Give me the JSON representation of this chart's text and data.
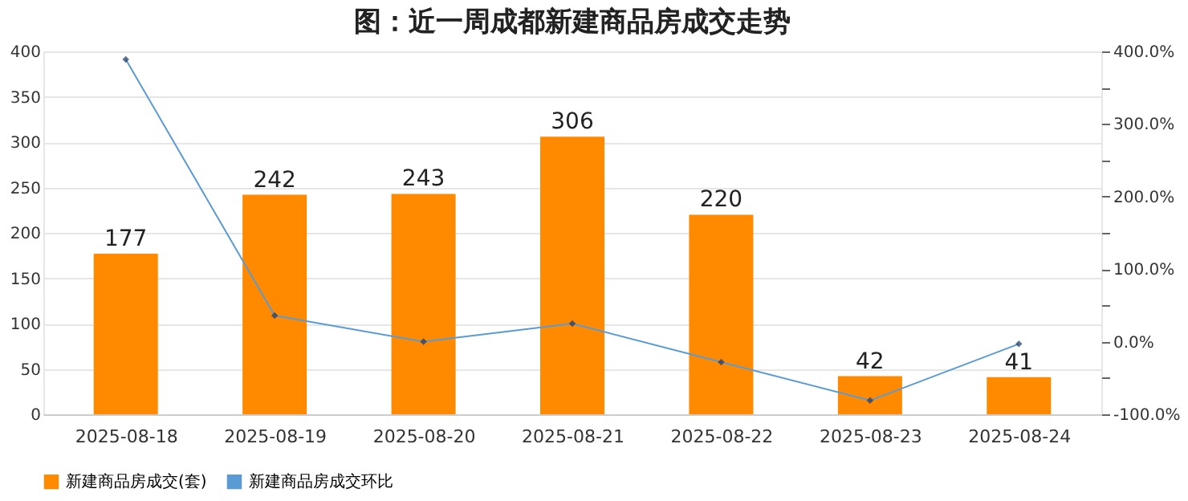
{
  "chart_data": {
    "type": "bar",
    "title": "图：近一周成都新建商品房成交走势",
    "categories": [
      "2025-08-18",
      "2025-08-19",
      "2025-08-20",
      "2025-08-21",
      "2025-08-22",
      "2025-08-23",
      "2025-08-24"
    ],
    "series": [
      {
        "name": "新建商品房成交(套)",
        "color": "#ff8a00",
        "values": [
          177,
          242,
          243,
          306,
          220,
          42,
          41
        ],
        "value_labels": [
          "177",
          "242",
          "243",
          "306",
          "220",
          "42",
          "41"
        ]
      },
      {
        "name": "新建商品房成交环比",
        "type": "line",
        "axis": "y2",
        "color": "#5b9bd5",
        "marker": "diamond",
        "values": [
          389,
          36,
          0,
          25,
          -28,
          -81,
          -3
        ]
      }
    ],
    "ylim": [
      0,
      400
    ],
    "yticks": [
      0,
      50,
      100,
      150,
      200,
      250,
      300,
      350,
      400
    ],
    "y2lim": [
      -100,
      400
    ],
    "y2ticks": [
      {
        "value": -100,
        "label": "-100.0%"
      },
      {
        "value": -50,
        "label": null
      },
      {
        "value": 0,
        "label": "0.0%"
      },
      {
        "value": 50,
        "label": null
      },
      {
        "value": 100,
        "label": "100.0%"
      },
      {
        "value": 150,
        "label": null
      },
      {
        "value": 200,
        "label": "200.0%"
      },
      {
        "value": 250,
        "label": null
      },
      {
        "value": 300,
        "label": "300.0%"
      },
      {
        "value": 350,
        "label": null
      },
      {
        "value": 400,
        "label": "400.0%"
      }
    ],
    "grid": "y",
    "legend": "bottom"
  }
}
